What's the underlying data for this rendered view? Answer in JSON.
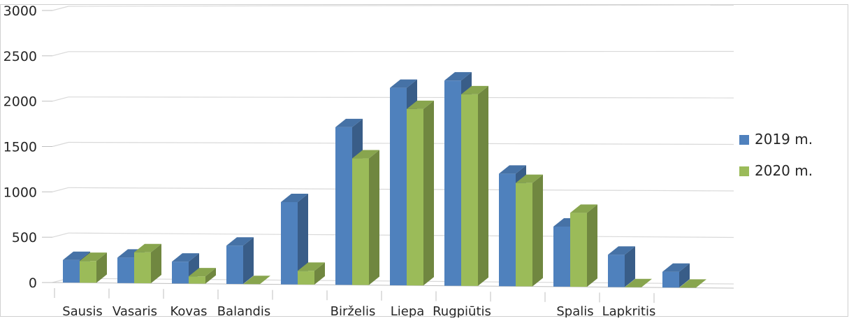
{
  "chart_data": {
    "type": "bar",
    "categories": [
      "Sausis",
      "Vasaris",
      "Kovas",
      "Balandis",
      "",
      "Birželis",
      "Liepa",
      "Rugpiūtis",
      "",
      "Spalis",
      "Lapkritis",
      ""
    ],
    "series": [
      {
        "name": "2019 m.",
        "color": "#4f81bd",
        "values": [
          250,
          280,
          240,
          420,
          900,
          1720,
          2150,
          2230,
          1220,
          650,
          350,
          170
        ]
      },
      {
        "name": "2020 m.",
        "color": "#9bbb59",
        "values": [
          240,
          340,
          80,
          0,
          150,
          1380,
          1920,
          2080,
          1120,
          800,
          0,
          0
        ]
      }
    ],
    "y_ticks": [
      "0",
      "500",
      "1000",
      "1500",
      "2000",
      "2500",
      "3000"
    ],
    "ylim": [
      0,
      3000
    ],
    "grid": true,
    "legend": "right"
  }
}
